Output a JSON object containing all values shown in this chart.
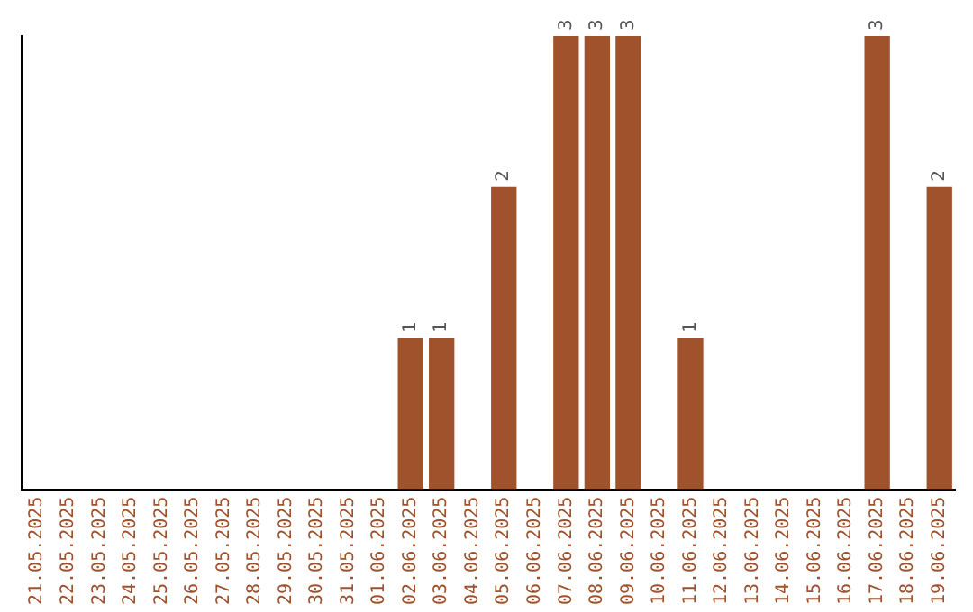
{
  "chart_data": {
    "type": "bar",
    "categories": [
      "21.05.2025",
      "22.05.2025",
      "23.05.2025",
      "24.05.2025",
      "25.05.2025",
      "26.05.2025",
      "27.05.2025",
      "28.05.2025",
      "29.05.2025",
      "30.05.2025",
      "31.05.2025",
      "01.06.2025",
      "02.06.2025",
      "03.06.2025",
      "04.06.2025",
      "05.06.2025",
      "06.06.2025",
      "07.06.2025",
      "08.06.2025",
      "09.06.2025",
      "10.06.2025",
      "11.06.2025",
      "12.06.2025",
      "13.06.2025",
      "14.06.2025",
      "15.06.2025",
      "16.06.2025",
      "17.06.2025",
      "18.06.2025",
      "19.06.2025"
    ],
    "values": [
      null,
      null,
      null,
      null,
      null,
      null,
      null,
      null,
      null,
      null,
      null,
      null,
      1,
      1,
      null,
      2,
      null,
      3,
      3,
      3,
      null,
      1,
      null,
      null,
      null,
      null,
      null,
      3,
      null,
      2
    ],
    "data_labels": true,
    "color": "#a0522d",
    "tick_labels": "x",
    "grid": false,
    "legend": false
  }
}
